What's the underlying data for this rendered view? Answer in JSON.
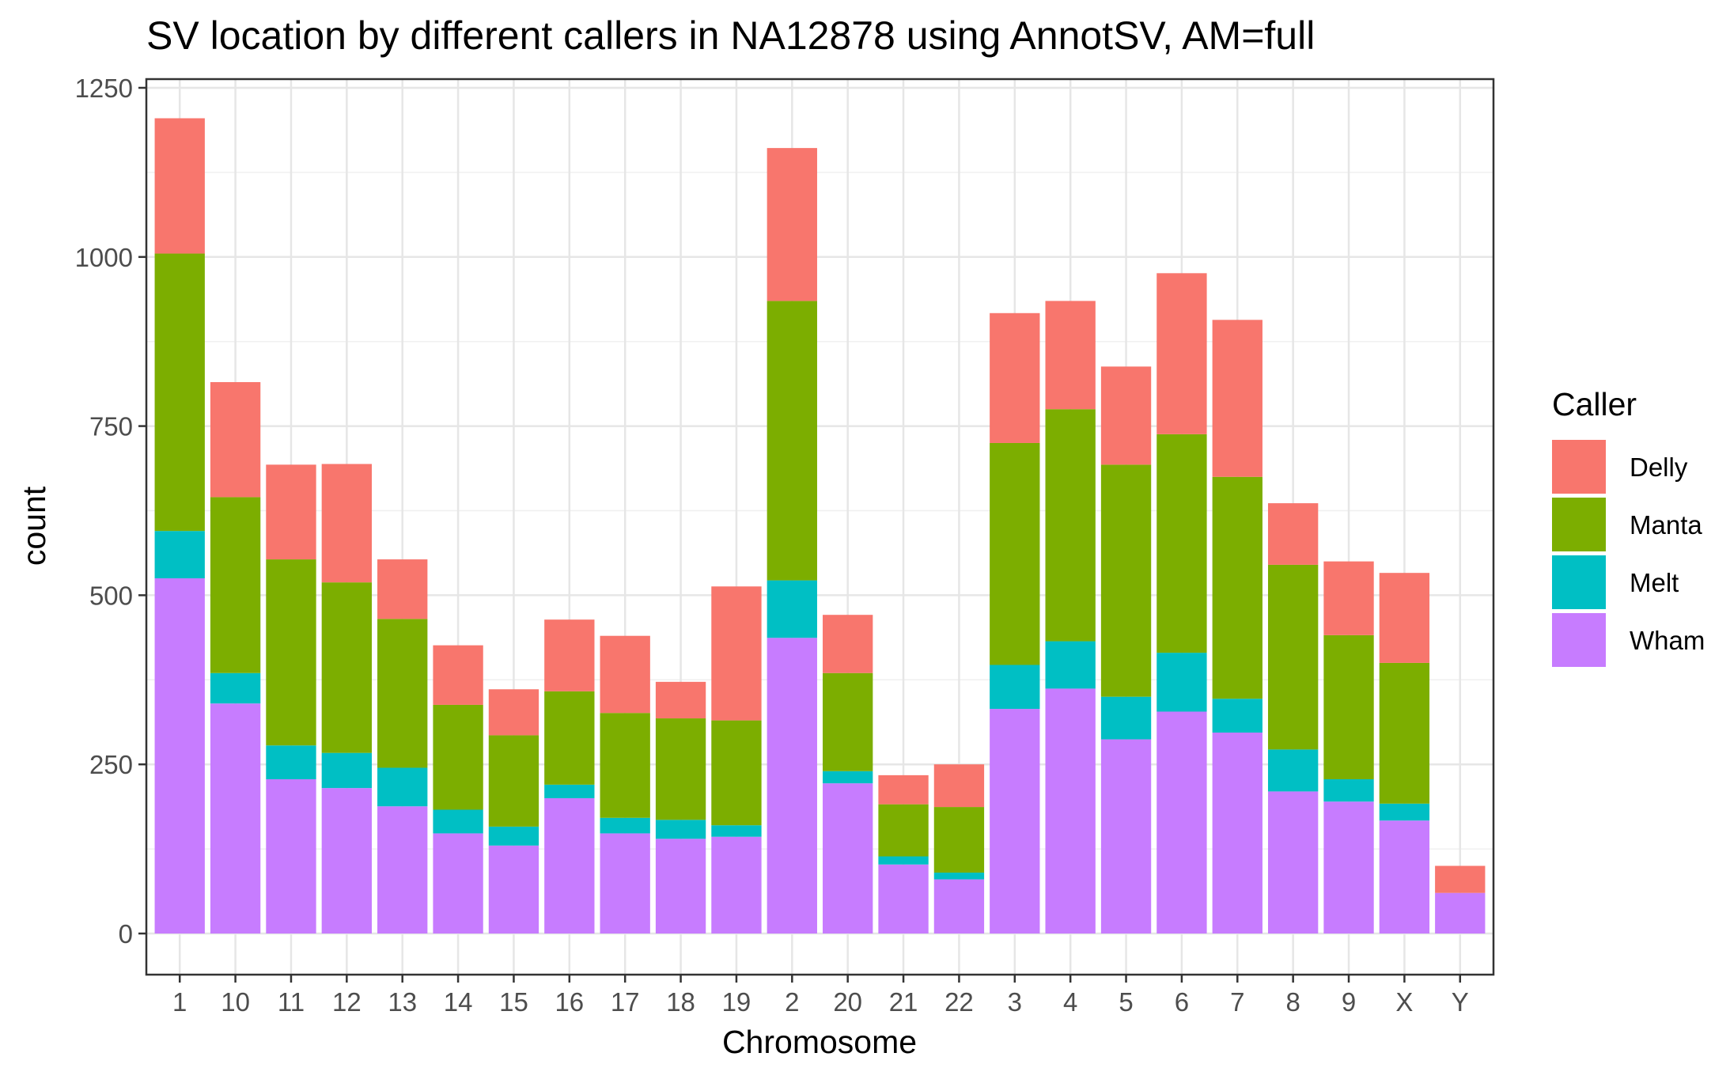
{
  "chart_data": {
    "type": "bar",
    "stacked": true,
    "title": "SV location by different callers in NA12878 using AnnotSV, AM=full",
    "xlabel": "Chromosome",
    "ylabel": "count",
    "ylim": [
      0,
      1250
    ],
    "yticks": [
      0,
      250,
      500,
      750,
      1000,
      1250
    ],
    "grid": true,
    "legend": {
      "title": "Caller",
      "position": "right"
    },
    "categories": [
      "1",
      "10",
      "11",
      "12",
      "13",
      "14",
      "15",
      "16",
      "17",
      "18",
      "19",
      "2",
      "20",
      "21",
      "22",
      "3",
      "4",
      "5",
      "6",
      "7",
      "8",
      "9",
      "X",
      "Y"
    ],
    "series": [
      {
        "name": "Wham",
        "color": "#C77CFF",
        "values": [
          525,
          340,
          228,
          215,
          188,
          148,
          130,
          200,
          148,
          140,
          143,
          437,
          222,
          102,
          80,
          332,
          362,
          287,
          328,
          297,
          210,
          195,
          167,
          60
        ]
      },
      {
        "name": "Melt",
        "color": "#00BFC4",
        "values": [
          70,
          45,
          50,
          52,
          57,
          35,
          28,
          20,
          23,
          28,
          17,
          85,
          18,
          12,
          10,
          65,
          70,
          63,
          87,
          50,
          62,
          33,
          25,
          0
        ]
      },
      {
        "name": "Manta",
        "color": "#7CAE00",
        "values": [
          410,
          260,
          275,
          252,
          220,
          155,
          135,
          138,
          155,
          150,
          155,
          413,
          145,
          77,
          97,
          328,
          343,
          343,
          323,
          328,
          273,
          213,
          208,
          0
        ]
      },
      {
        "name": "Delly",
        "color": "#F8766D",
        "values": [
          200,
          170,
          140,
          175,
          88,
          88,
          68,
          106,
          114,
          54,
          198,
          226,
          86,
          43,
          63,
          192,
          160,
          145,
          238,
          232,
          91,
          109,
          133,
          40
        ]
      }
    ],
    "stack_order_bottom_to_top": [
      "Wham",
      "Melt",
      "Manta",
      "Delly"
    ],
    "legend_order": [
      "Delly",
      "Manta",
      "Melt",
      "Wham"
    ]
  }
}
